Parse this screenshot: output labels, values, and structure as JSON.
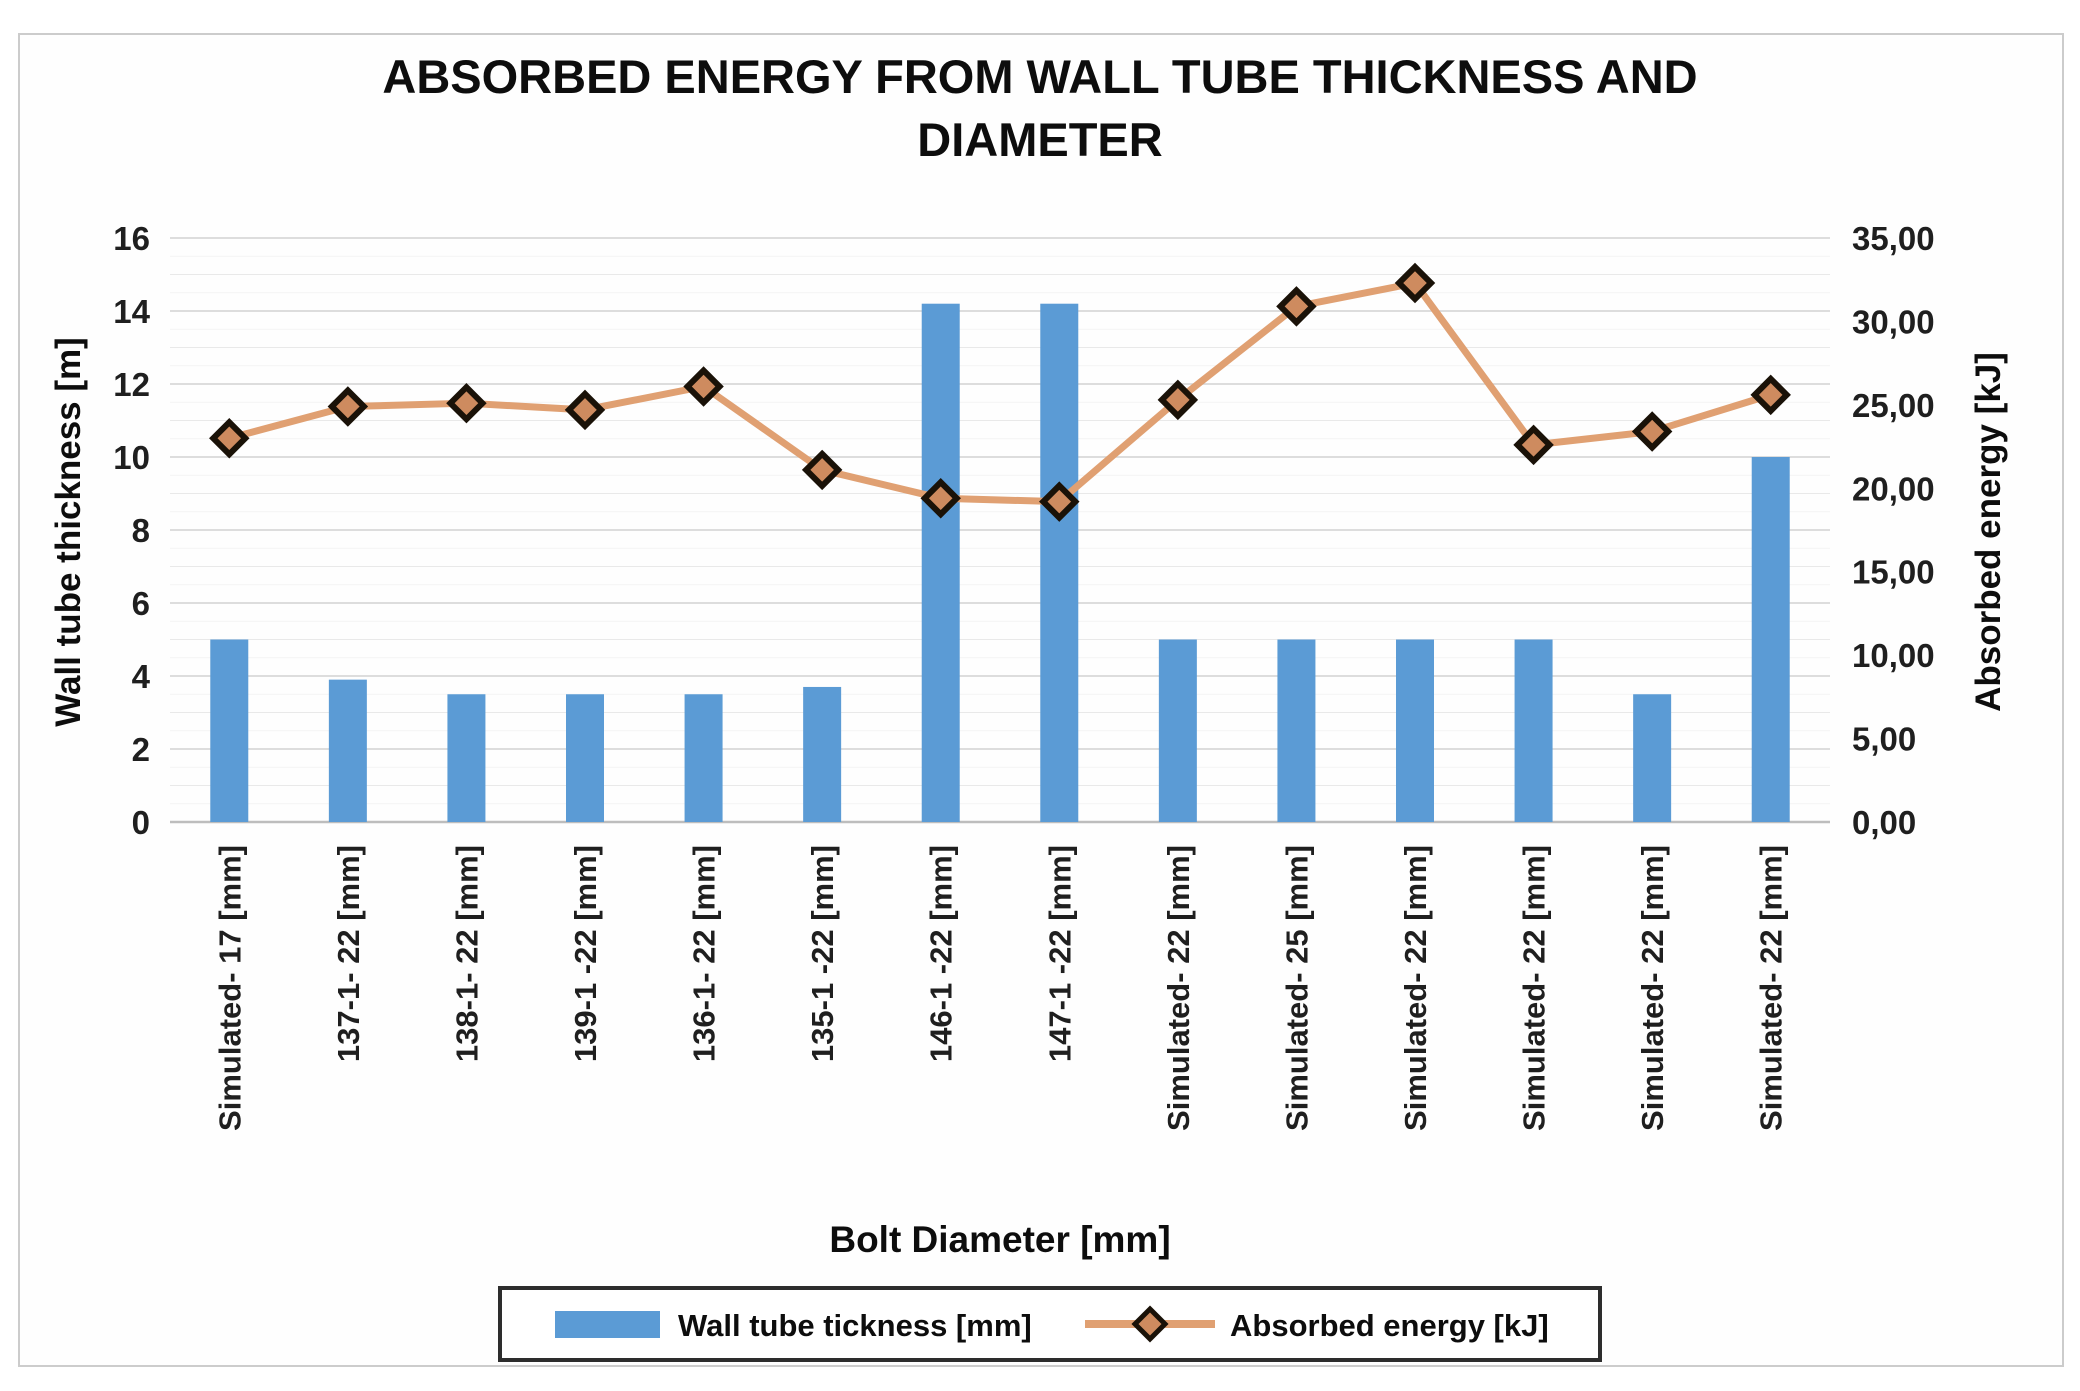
{
  "chart_data": {
    "type": "bar-line-combo",
    "title": "ABSORBED ENERGY FROM WALL TUBE THICKNESS AND DIAMETER",
    "xlabel": "Bolt Diameter [mm]",
    "grid": "horizontal, minor every 0.5, major every 2",
    "legend_position": "bottom, boxed",
    "y_left": {
      "label": "Wall tube thickness  [m]",
      "min": 0,
      "max": 16,
      "ticks": [
        "16",
        "14",
        "12",
        "10",
        "8",
        "6",
        "4",
        "2",
        "0"
      ]
    },
    "y_right": {
      "label": "Absorbed energy  [kJ]",
      "min": 0,
      "max": 35,
      "ticks": [
        "35,00",
        "30,00",
        "25,00",
        "20,00",
        "15,00",
        "10,00",
        "5,00",
        "0,00"
      ]
    },
    "categories": [
      "Simulated- 17 [mm]",
      "137-1- 22 [mm]",
      "138-1- 22 [mm]",
      "139-1 -22 [mm]",
      "136-1- 22 [mm]",
      "135-1 -22 [mm]",
      "146-1 -22 [mm]",
      "147-1 -22 [mm]",
      "Simulated- 22 [mm]",
      "Simulated- 25 [mm]",
      "Simulated- 22 [mm]",
      "Simulated- 22 [mm]",
      "Simulated- 22 [mm]",
      "Simulated- 22 [mm]"
    ],
    "series": [
      {
        "name": "Wall tube tickness  [mm]",
        "type": "bar",
        "axis": "left",
        "color": "#5B9BD5",
        "values": [
          5.0,
          3.9,
          3.5,
          3.5,
          3.5,
          3.7,
          14.2,
          14.2,
          5.0,
          5.0,
          5.0,
          5.0,
          3.5,
          10.0
        ]
      },
      {
        "name": "Absorbed energy  [kJ]",
        "type": "line",
        "axis": "right",
        "color": "#E0A072",
        "marker": {
          "shape": "diamond",
          "fill": "#CE8B5F",
          "stroke": "#1A1208"
        },
        "values": [
          23.0,
          24.9,
          25.1,
          24.7,
          26.1,
          21.1,
          19.4,
          19.2,
          25.3,
          30.9,
          32.3,
          22.6,
          23.4,
          25.6
        ]
      }
    ]
  }
}
